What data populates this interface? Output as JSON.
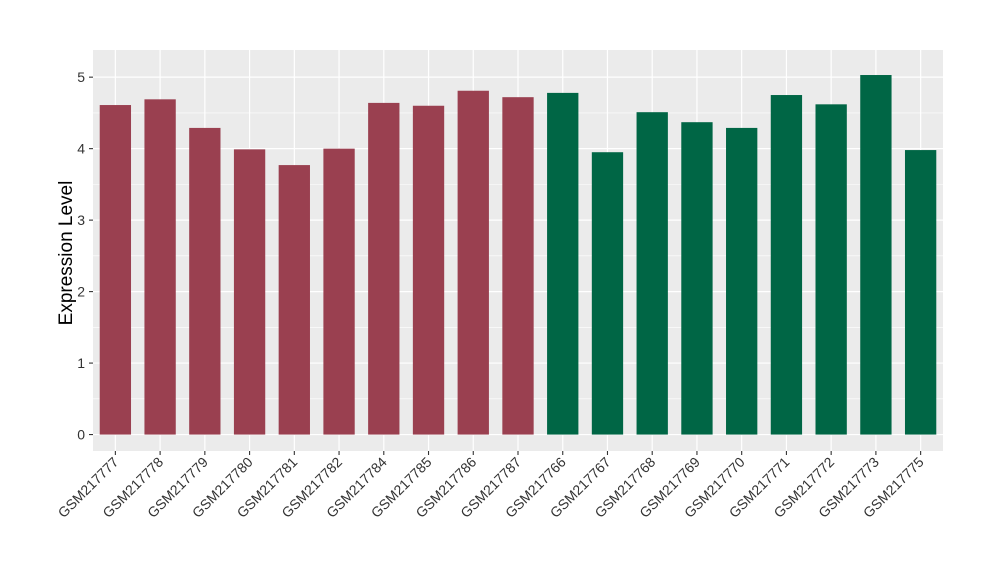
{
  "chart_data": {
    "type": "bar",
    "title": "",
    "xlabel": "",
    "ylabel": "Expression Level",
    "ylim": [
      -0.23,
      5.38
    ],
    "yticks": [
      0,
      1,
      2,
      3,
      4,
      5
    ],
    "grid": true,
    "categories": [
      "GSM217777",
      "GSM217778",
      "GSM217779",
      "GSM217780",
      "GSM217781",
      "GSM217782",
      "GSM217784",
      "GSM217785",
      "GSM217786",
      "GSM217787",
      "GSM217766",
      "GSM217767",
      "GSM217768",
      "GSM217769",
      "GSM217770",
      "GSM217771",
      "GSM217772",
      "GSM217773",
      "GSM217775"
    ],
    "values": [
      4.61,
      4.69,
      4.29,
      3.99,
      3.77,
      4.0,
      4.64,
      4.6,
      4.81,
      4.72,
      4.78,
      3.95,
      4.51,
      4.37,
      4.29,
      4.75,
      4.62,
      5.03,
      3.98
    ],
    "groups": [
      0,
      0,
      0,
      0,
      0,
      0,
      0,
      0,
      0,
      0,
      1,
      1,
      1,
      1,
      1,
      1,
      1,
      1,
      1
    ],
    "group_colors": [
      "#9A4050",
      "#006645"
    ],
    "background": "#EBEBEB"
  }
}
